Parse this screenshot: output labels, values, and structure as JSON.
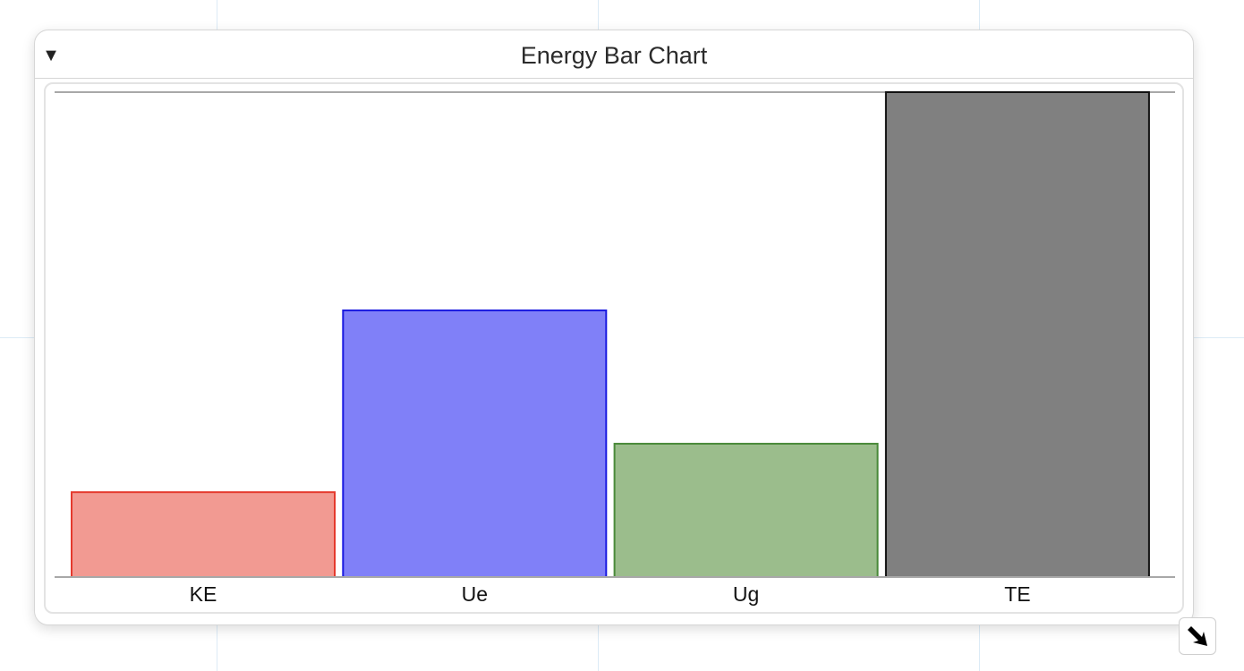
{
  "panel": {
    "title": "Energy Bar Chart",
    "collapse_icon": "triangle-down-icon",
    "resize_icon": "resize-arrow-icon"
  },
  "chart_data": {
    "type": "bar",
    "title": "Energy Bar Chart",
    "categories": [
      "KE",
      "Ue",
      "Ug",
      "TE"
    ],
    "values": [
      17.5,
      55.0,
      27.5,
      100.0
    ],
    "colors": {
      "fill": [
        "#f29a92",
        "#8080f8",
        "#9bbd8c",
        "#808080"
      ],
      "stroke": [
        "#e53a2e",
        "#1a1ae0",
        "#4a8a3a",
        "#111111"
      ]
    },
    "ylim": [
      0,
      100
    ],
    "xlabel": "",
    "ylabel": "",
    "grid": false,
    "legend": "none"
  }
}
